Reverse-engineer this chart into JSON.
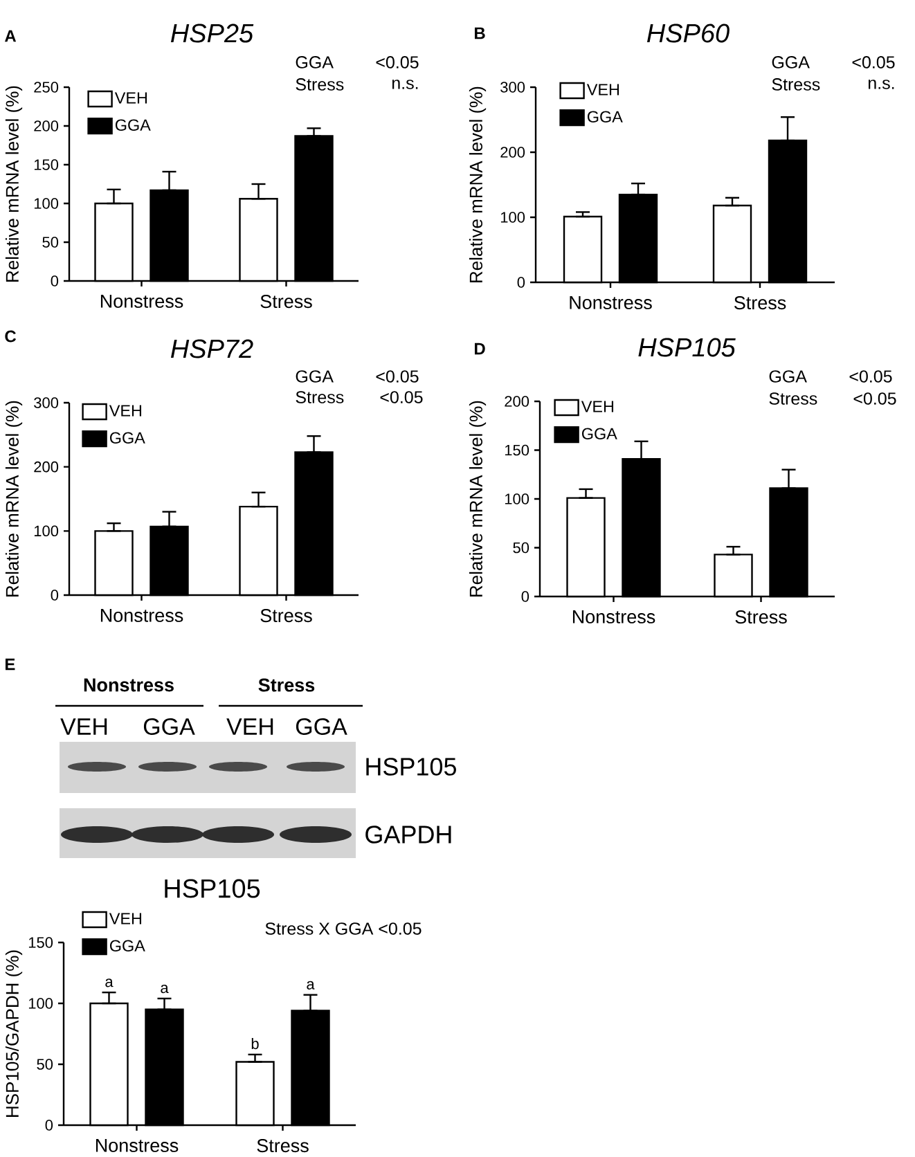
{
  "chart_data": [
    {
      "type": "bar",
      "title": "HSP25",
      "ylabel": "Relative mRNA level (%)",
      "categories": [
        "Nonstress",
        "Stress"
      ],
      "series": [
        {
          "name": "VEH",
          "color": "#ffffff",
          "values": [
            100,
            106
          ],
          "errors": [
            [
              100,
              118
            ],
            [
              106,
              125
            ]
          ]
        },
        {
          "name": "GGA",
          "color": "#000000",
          "values": [
            117,
            187
          ],
          "errors": [
            [
              117,
              141
            ],
            [
              187,
              197
            ]
          ]
        }
      ],
      "ylim": [
        0,
        250
      ],
      "yticks": [
        0,
        50,
        100,
        150,
        200,
        250
      ],
      "legend": "top left",
      "annotations": [
        "A",
        "GGA",
        "<0.05",
        "Stress",
        "n.s."
      ]
    },
    {
      "type": "bar",
      "title": "HSP60",
      "ylabel": "Relative mRNA level (%)",
      "categories": [
        "Nonstress",
        "Stress"
      ],
      "series": [
        {
          "name": "VEH",
          "color": "#ffffff",
          "values": [
            101,
            118
          ],
          "errors": [
            [
              101,
              108
            ],
            [
              118,
              130
            ]
          ]
        },
        {
          "name": "GGA",
          "color": "#000000",
          "values": [
            135,
            218
          ],
          "errors": [
            [
              135,
              152
            ],
            [
              218,
              254
            ]
          ]
        }
      ],
      "ylim": [
        0,
        300
      ],
      "yticks": [
        0,
        100,
        200,
        300
      ],
      "legend": "top left",
      "annotations": [
        "B",
        "GGA",
        "<0.05",
        "Stress",
        "n.s."
      ]
    },
    {
      "type": "bar",
      "title": "HSP72",
      "ylabel": "Relative mRNA level (%)",
      "categories": [
        "Nonstress",
        "Stress"
      ],
      "series": [
        {
          "name": "VEH",
          "color": "#ffffff",
          "values": [
            100,
            138
          ],
          "errors": [
            [
              100,
              112
            ],
            [
              138,
              160
            ]
          ]
        },
        {
          "name": "GGA",
          "color": "#000000",
          "values": [
            107,
            223
          ],
          "errors": [
            [
              107,
              130
            ],
            [
              223,
              248
            ]
          ]
        }
      ],
      "ylim": [
        0,
        300
      ],
      "yticks": [
        0,
        100,
        200,
        300
      ],
      "legend": "top left",
      "annotations": [
        "C",
        "GGA",
        "<0.05",
        "Stress",
        "<0.05"
      ]
    },
    {
      "type": "bar",
      "title": "HSP105",
      "ylabel": "Relative mRNA level (%)",
      "categories": [
        "Nonstress",
        "Stress"
      ],
      "series": [
        {
          "name": "VEH",
          "color": "#ffffff",
          "values": [
            101,
            43
          ],
          "errors": [
            [
              101,
              110
            ],
            [
              43,
              51
            ]
          ]
        },
        {
          "name": "GGA",
          "color": "#000000",
          "values": [
            141,
            111
          ],
          "errors": [
            [
              141,
              159
            ],
            [
              111,
              130
            ]
          ]
        }
      ],
      "ylim": [
        0,
        200
      ],
      "yticks": [
        0,
        50,
        100,
        150,
        200
      ],
      "legend": "top left",
      "annotations": [
        "D",
        "GGA",
        "<0.05",
        "Stress",
        "<0.05"
      ]
    },
    {
      "type": "other",
      "categories": [
        "VEH",
        "GGA",
        "VEH",
        "GGA"
      ],
      "annotations": [
        "E",
        "Nonstress",
        "Stress",
        "HSP105",
        "GAPDH"
      ]
    },
    {
      "type": "bar",
      "title": "HSP105",
      "ylabel": "HSP105/GAPDH (%)",
      "categories": [
        "Nonstress",
        "Stress"
      ],
      "series": [
        {
          "name": "VEH",
          "color": "#ffffff",
          "values": [
            100,
            52
          ],
          "errors": [
            [
              100,
              109
            ],
            [
              52,
              58
            ]
          ],
          "value_labels": [
            "a",
            "b"
          ]
        },
        {
          "name": "GGA",
          "color": "#000000",
          "values": [
            95,
            94
          ],
          "errors": [
            [
              95,
              104
            ],
            [
              94,
              107
            ]
          ],
          "value_labels": [
            "a",
            "a"
          ]
        }
      ],
      "ylim": [
        0,
        150
      ],
      "yticks": [
        0,
        50,
        100,
        150
      ],
      "legend": "top left",
      "annotations": [
        "Stress X GGA <0.05"
      ]
    }
  ]
}
